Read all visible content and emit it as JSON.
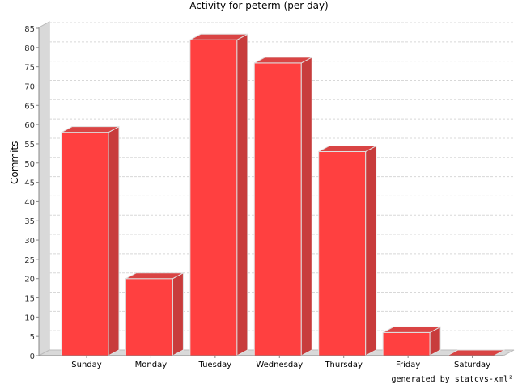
{
  "chart_data": {
    "type": "bar",
    "title": "Activity for peterm (per day)",
    "xlabel": "",
    "ylabel": "Commits",
    "categories": [
      "Sunday",
      "Monday",
      "Tuesday",
      "Wednesday",
      "Thursday",
      "Friday",
      "Saturday"
    ],
    "values": [
      58,
      20,
      82,
      76,
      53,
      6,
      0
    ],
    "ylim": [
      0,
      85
    ],
    "yticks": [
      0,
      5,
      10,
      15,
      20,
      25,
      30,
      35,
      40,
      45,
      50,
      55,
      60,
      65,
      70,
      75,
      80,
      85
    ],
    "grid": true,
    "bar_color": "#ff4040",
    "bar_side_color": "#c83c3c",
    "bar_top_color": "#d94444"
  },
  "footer": "generated by statcvs-xml²"
}
